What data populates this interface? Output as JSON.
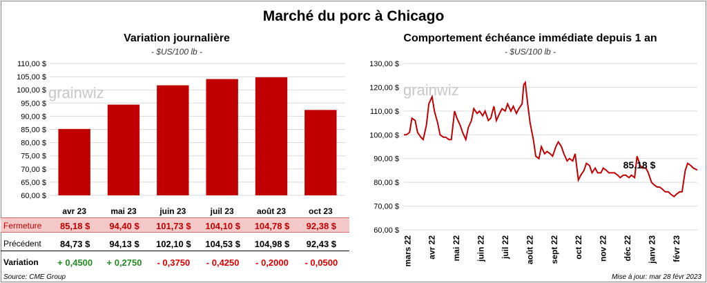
{
  "main_title": "Marché du porc à Chicago",
  "left_title": "Variation  journalière",
  "left_unit": "- $US/100 lb -",
  "right_title": "Comportement  échéance immédiate depuis 1 an",
  "right_unit": "- $US/100 lb -",
  "watermark": "grainwiz",
  "colors": {
    "bar": "#c00000",
    "line": "#c00000",
    "close_row_bg": "#f6c9c9",
    "positive": "#228b22",
    "negative": "#e00000"
  },
  "table": {
    "close_label": "Fermeture",
    "prev_label": "Précédent",
    "var_label": "Variation",
    "close": [
      "85,18",
      "94,40",
      "101,73",
      "104,10",
      "104,78",
      "92,38"
    ],
    "prev": [
      "84,73",
      "94,13",
      "102,10",
      "104,53",
      "104,98",
      "92,43"
    ],
    "var": [
      "+ 0,4500",
      "+ 0,2750",
      "- 0,3750",
      "- 0,4250",
      "- 0,2000",
      "- 0,0500"
    ],
    "currency": "$"
  },
  "source": "Source: CME Group",
  "updated": "Mise à jour: mar 28 févr 2023",
  "chart_data": [
    {
      "type": "bar",
      "title": "Variation  journalière",
      "subtitle": "- $US/100 lb -",
      "categories": [
        "avr 23",
        "mai 23",
        "juin 23",
        "juil 23",
        "août 23",
        "oct 23"
      ],
      "values": [
        85.18,
        94.4,
        101.73,
        104.1,
        104.78,
        92.38
      ],
      "ylim": [
        60,
        110
      ],
      "yticks": [
        60,
        65,
        70,
        75,
        80,
        85,
        90,
        95,
        100,
        105,
        110
      ],
      "ytick_labels": [
        "60,00 $",
        "65,00 $",
        "70,00 $",
        "75,00 $",
        "80,00 $",
        "85,00 $",
        "90,00 $",
        "95,00 $",
        "100,00 $",
        "105,00 $",
        "110,00 $"
      ]
    },
    {
      "type": "line",
      "title": "Comportement  échéance immédiate depuis 1 an",
      "subtitle": "- $US/100 lb -",
      "ylim": [
        60,
        130
      ],
      "yticks": [
        60,
        70,
        80,
        90,
        100,
        110,
        120,
        130
      ],
      "ytick_labels": [
        "60,00 $",
        "70,00 $",
        "80,00 $",
        "90,00 $",
        "100,00 $",
        "110,00 $",
        "120,00 $",
        "130,00 $"
      ],
      "x_labels": [
        "mars 22",
        "avr 22",
        "mai 22",
        "juin 22",
        "juil 22",
        "août 22",
        "sept 22",
        "oct 22",
        "nov 22",
        "déc 22",
        "janv 23",
        "févr 23"
      ],
      "last_value_label": "85,18 $",
      "x": [
        "2022-02-28",
        "2022-03-03",
        "2022-03-07",
        "2022-03-10",
        "2022-03-14",
        "2022-03-17",
        "2022-03-21",
        "2022-03-24",
        "2022-03-28",
        "2022-03-31",
        "2022-04-04",
        "2022-04-07",
        "2022-04-11",
        "2022-04-14",
        "2022-04-18",
        "2022-04-21",
        "2022-04-25",
        "2022-04-28",
        "2022-05-02",
        "2022-05-05",
        "2022-05-09",
        "2022-05-12",
        "2022-05-16",
        "2022-05-19",
        "2022-05-23",
        "2022-05-26",
        "2022-05-30",
        "2022-06-02",
        "2022-06-06",
        "2022-06-09",
        "2022-06-13",
        "2022-06-16",
        "2022-06-20",
        "2022-06-23",
        "2022-06-27",
        "2022-06-30",
        "2022-07-04",
        "2022-07-07",
        "2022-07-11",
        "2022-07-14",
        "2022-07-18",
        "2022-07-21",
        "2022-07-25",
        "2022-07-27",
        "2022-07-29",
        "2022-08-01",
        "2022-08-04",
        "2022-08-08",
        "2022-08-11",
        "2022-08-15",
        "2022-08-18",
        "2022-08-22",
        "2022-08-25",
        "2022-08-29",
        "2022-09-01",
        "2022-09-05",
        "2022-09-08",
        "2022-09-12",
        "2022-09-15",
        "2022-09-19",
        "2022-09-22",
        "2022-09-26",
        "2022-09-29",
        "2022-10-03",
        "2022-10-06",
        "2022-10-10",
        "2022-10-13",
        "2022-10-17",
        "2022-10-20",
        "2022-10-24",
        "2022-10-27",
        "2022-10-31",
        "2022-11-03",
        "2022-11-07",
        "2022-11-10",
        "2022-11-14",
        "2022-11-17",
        "2022-11-21",
        "2022-11-24",
        "2022-11-28",
        "2022-12-01",
        "2022-12-05",
        "2022-12-08",
        "2022-12-12",
        "2022-12-15",
        "2022-12-19",
        "2022-12-22",
        "2022-12-26",
        "2022-12-29",
        "2023-01-02",
        "2023-01-05",
        "2023-01-09",
        "2023-01-12",
        "2023-01-16",
        "2023-01-19",
        "2023-01-23",
        "2023-01-26",
        "2023-01-30",
        "2023-02-02",
        "2023-02-06",
        "2023-02-09",
        "2023-02-13",
        "2023-02-16",
        "2023-02-20",
        "2023-02-23",
        "2023-02-28"
      ],
      "values": [
        100,
        100,
        101,
        107,
        106,
        101,
        99,
        98,
        104,
        113,
        116,
        110,
        105,
        100,
        99,
        99,
        98,
        98,
        110,
        107,
        104,
        101,
        98,
        103,
        106,
        111,
        109,
        110,
        108,
        110,
        106,
        107,
        112,
        106,
        109,
        111,
        110,
        113,
        110,
        112,
        109,
        111,
        113,
        121,
        122,
        113,
        105,
        98,
        91,
        90,
        95,
        92,
        93,
        92,
        91,
        95,
        97,
        95,
        92,
        89,
        90,
        89,
        92,
        81,
        83,
        85,
        88,
        87,
        84,
        86,
        84,
        84,
        86,
        85,
        84,
        84,
        84,
        83,
        82,
        83,
        83,
        82,
        83,
        82,
        91,
        87,
        86,
        86,
        84,
        80,
        79,
        78,
        78,
        77,
        76,
        76,
        75,
        74,
        75,
        76,
        76,
        85,
        88,
        87,
        86,
        85.18
      ]
    }
  ]
}
